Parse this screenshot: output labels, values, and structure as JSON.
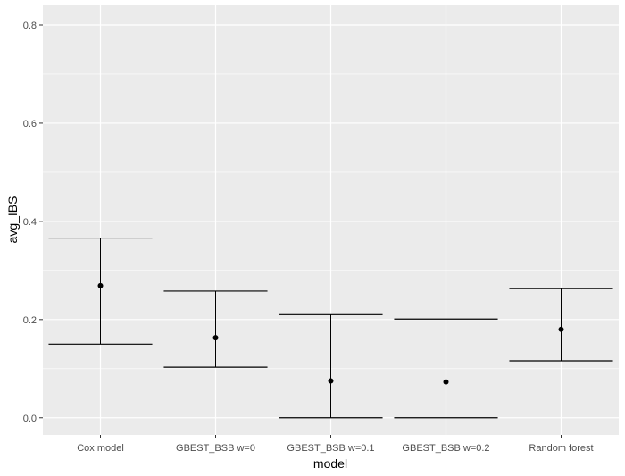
{
  "chart_data": {
    "type": "errorbar",
    "title": "",
    "xlabel": "model",
    "ylabel": "avg_IBS",
    "ylim": [
      -0.035,
      0.84
    ],
    "y_ticks": [
      0.0,
      0.2,
      0.4,
      0.6,
      0.8
    ],
    "y_tick_labels": [
      "0.0",
      "0.2",
      "0.4",
      "0.6",
      "0.8"
    ],
    "grid": true,
    "categories": [
      "Cox model",
      "GBEST_BSB w=0",
      "GBEST_BSB w=0.1",
      "GBEST_BSB w=0.2",
      "Random forest"
    ],
    "points": [
      {
        "model": "Cox model",
        "mean": 0.269,
        "lower": 0.15,
        "upper": 0.366
      },
      {
        "model": "GBEST_BSB w=0",
        "mean": 0.163,
        "lower": 0.103,
        "upper": 0.258
      },
      {
        "model": "GBEST_BSB w=0.1",
        "mean": 0.075,
        "lower": 0.0,
        "upper": 0.21
      },
      {
        "model": "GBEST_BSB w=0.2",
        "mean": 0.073,
        "lower": 0.0,
        "upper": 0.201
      },
      {
        "model": "Random forest",
        "mean": 0.18,
        "lower": 0.116,
        "upper": 0.263
      }
    ],
    "colors": {
      "panel": "#ebebeb",
      "grid": "#ffffff",
      "marks": "#000000",
      "ticks": "#333333"
    }
  }
}
